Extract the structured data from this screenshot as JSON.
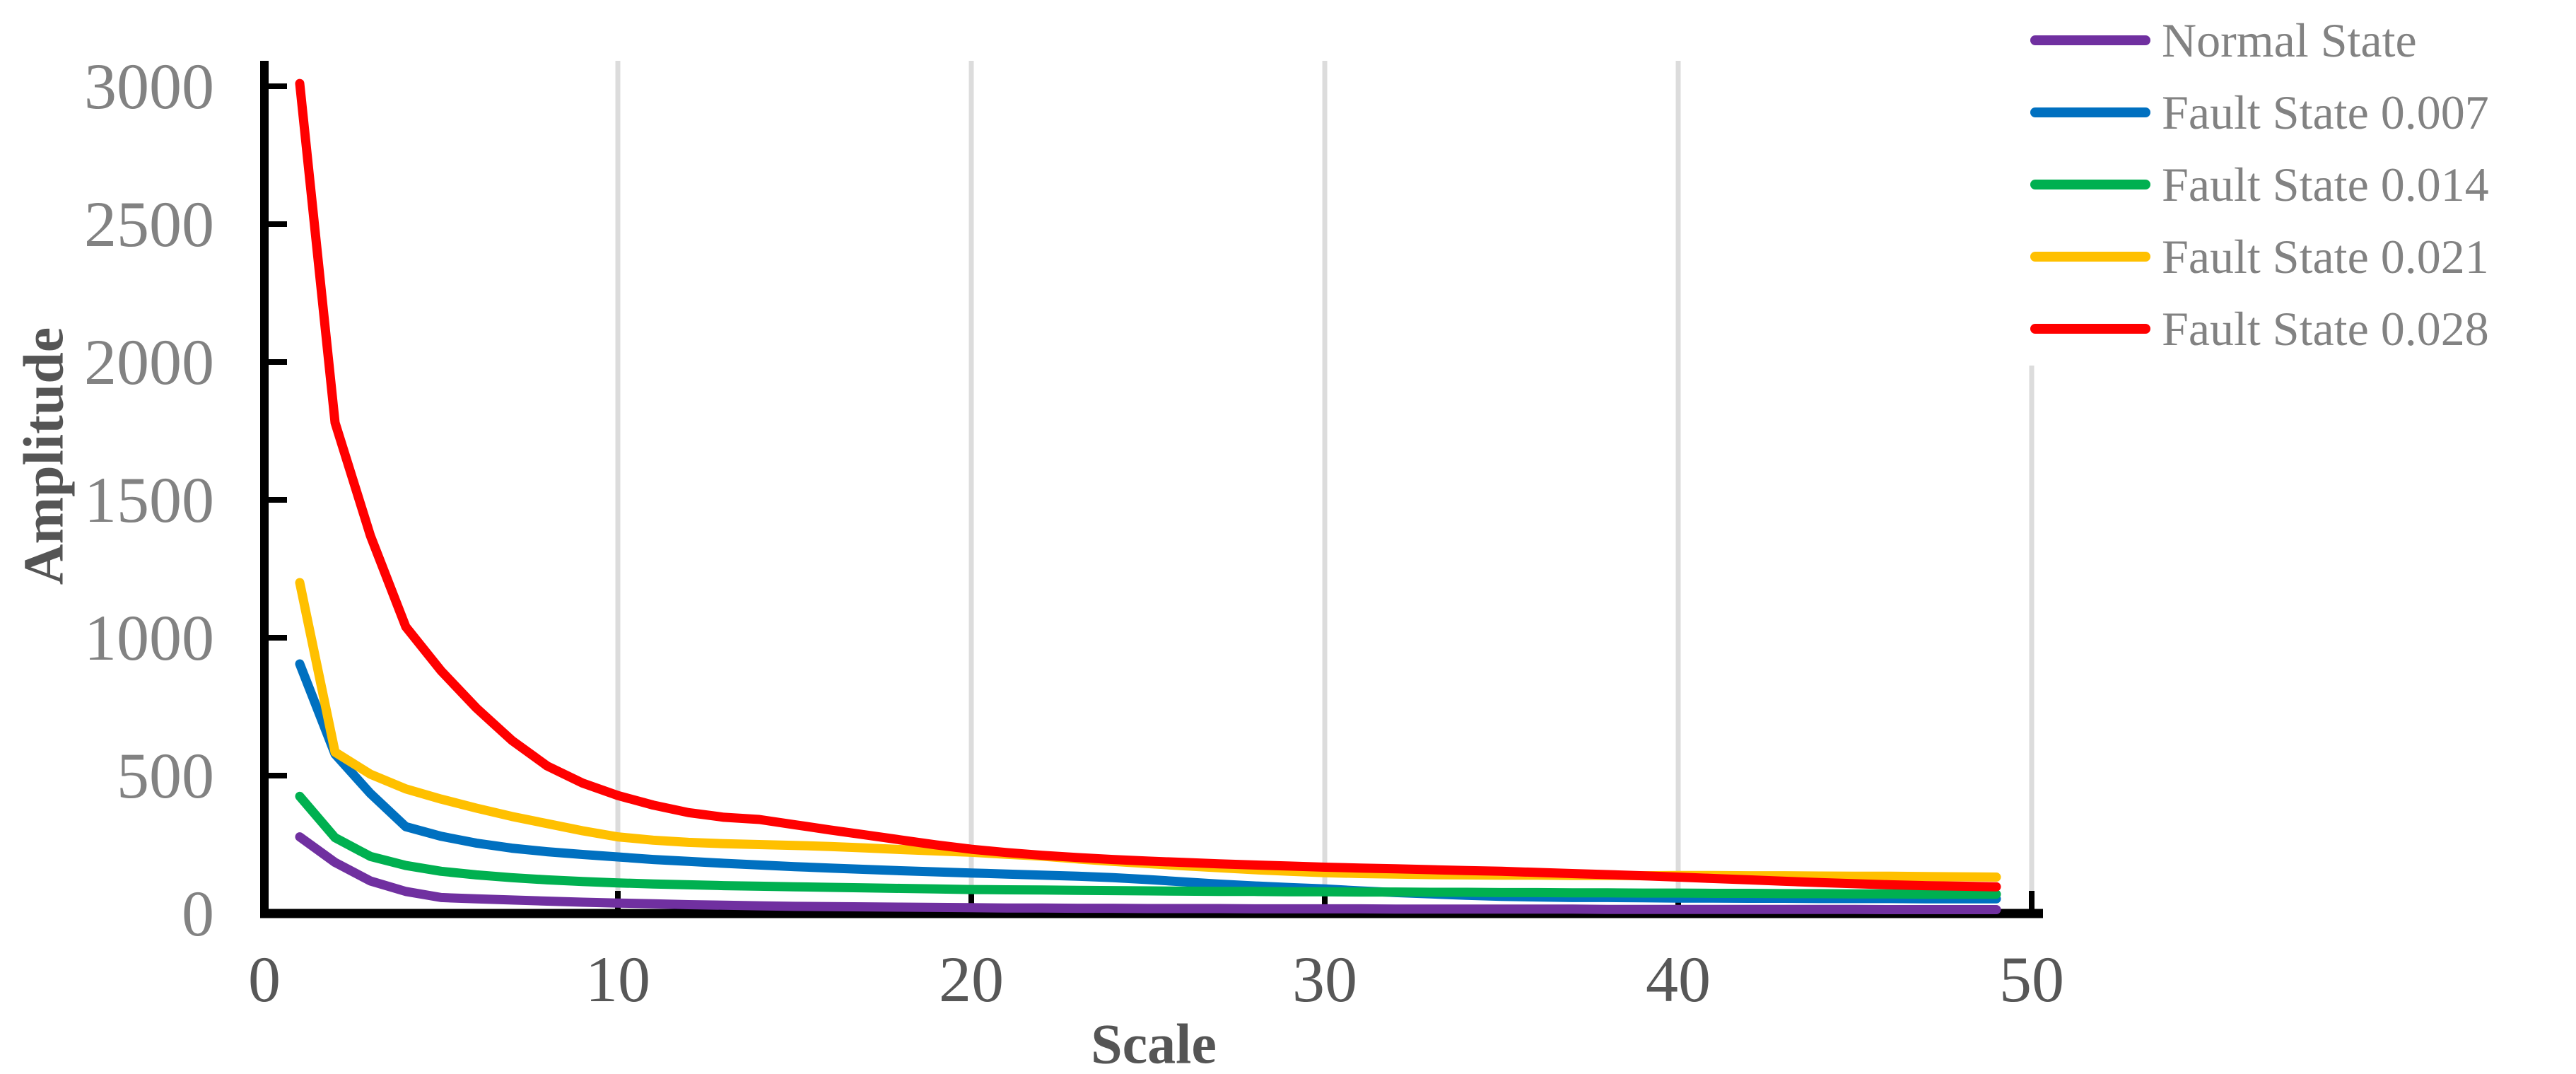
{
  "chart_data": {
    "type": "line",
    "title": "",
    "xlabel": "Scale",
    "ylabel": "Amplitude",
    "xlim": [
      0,
      50
    ],
    "ylim": [
      0,
      3000
    ],
    "x_ticks": [
      0,
      10,
      20,
      30,
      40,
      50
    ],
    "y_ticks": [
      0,
      500,
      1000,
      1500,
      2000,
      2500,
      3000
    ],
    "grid": "vertical-only",
    "legend_position": "top-right",
    "x": [
      1,
      2,
      3,
      4,
      5,
      6,
      7,
      8,
      9,
      10,
      11,
      12,
      13,
      14,
      15,
      16,
      17,
      18,
      19,
      20,
      21,
      22,
      23,
      24,
      25,
      26,
      27,
      28,
      29,
      30,
      31,
      32,
      33,
      34,
      35,
      36,
      37,
      38,
      39,
      40,
      41,
      42,
      43,
      44,
      45,
      46,
      47,
      48,
      49
    ],
    "series": [
      {
        "name": "Normal State",
        "color": "#7030A0",
        "values": [
          278,
          185,
          118,
          80,
          58,
          53,
          49,
          45,
          41,
          38,
          35,
          32,
          30,
          28,
          26,
          25,
          24,
          23,
          22,
          21,
          20,
          20,
          19,
          19,
          18,
          18,
          18,
          17,
          17,
          17,
          17,
          16,
          16,
          16,
          16,
          16,
          16,
          15,
          15,
          15,
          15,
          15,
          15,
          15,
          15,
          14,
          14,
          14,
          14
        ]
      },
      {
        "name": "Fault State 0.007",
        "color": "#0070C0",
        "values": [
          905,
          578,
          435,
          315,
          280,
          255,
          237,
          224,
          214,
          205,
          196,
          189,
          182,
          176,
          170,
          165,
          160,
          155,
          151,
          147,
          143,
          139,
          135,
          130,
          123,
          115,
          107,
          100,
          94,
          89,
          82,
          76,
          71,
          66,
          62,
          60,
          58,
          58,
          57,
          56,
          56,
          55,
          55,
          54,
          54,
          54,
          53,
          53,
          53
        ]
      },
      {
        "name": "Fault State 0.014",
        "color": "#00B050",
        "values": [
          425,
          275,
          207,
          174,
          153,
          140,
          130,
          122,
          116,
          111,
          107,
          104,
          101,
          99,
          97,
          95,
          93,
          91,
          89,
          87,
          86,
          85,
          84,
          83,
          82,
          81,
          80,
          80,
          79,
          79,
          78,
          78,
          77,
          77,
          76,
          76,
          75,
          75,
          74,
          74,
          73,
          73,
          72,
          72,
          71,
          71,
          70,
          70,
          70
        ]
      },
      {
        "name": "Fault State 0.021",
        "color": "#FFC000",
        "values": [
          1200,
          585,
          505,
          452,
          415,
          382,
          352,
          326,
          300,
          278,
          266,
          258,
          253,
          250,
          247,
          243,
          238,
          232,
          227,
          222,
          215,
          208,
          198,
          189,
          181,
          173,
          166,
          159,
          153,
          148,
          145,
          143,
          141,
          140,
          139,
          139,
          138,
          138,
          137,
          138,
          138,
          137,
          137,
          136,
          135,
          135,
          134,
          133,
          132
        ]
      },
      {
        "name": "Fault State 0.028",
        "color": "#FF0000",
        "values": [
          3010,
          1780,
          1370,
          1040,
          880,
          745,
          628,
          535,
          473,
          428,
          393,
          366,
          349,
          341,
          322,
          303,
          285,
          267,
          249,
          233,
          221,
          211,
          203,
          196,
          190,
          185,
          180,
          176,
          172,
          168,
          165,
          162,
          159,
          156,
          153,
          149,
          145,
          141,
          137,
          132,
          127,
          122,
          117,
          112,
          108,
          104,
          101,
          99,
          97
        ]
      }
    ]
  },
  "colors": {
    "axis_spine": "#000000",
    "gridline": "#DCDCDC",
    "x_tick_label": "#575757",
    "y_tick_label": "#828282",
    "axis_title": "#555555",
    "legend_text": "#828282"
  }
}
